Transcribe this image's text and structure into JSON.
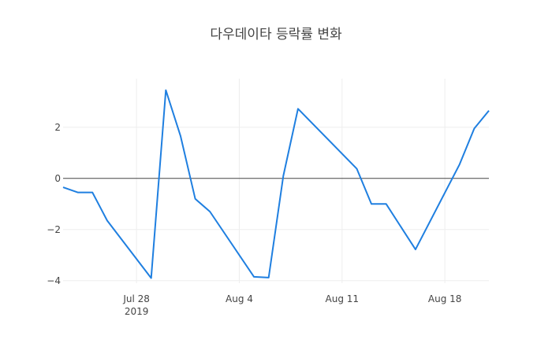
{
  "chart_data": {
    "type": "line",
    "title": "다우데이타 등락률 변화",
    "xlabel": "",
    "ylabel": "",
    "xlim": [
      "2019-07-23",
      "2019-08-21"
    ],
    "ylim": [
      -4.1,
      3.9
    ],
    "x_ticks": [
      {
        "value": "2019-07-28",
        "label": "Jul 28",
        "sublabel": "2019"
      },
      {
        "value": "2019-08-04",
        "label": "Aug 4",
        "sublabel": ""
      },
      {
        "value": "2019-08-11",
        "label": "Aug 11",
        "sublabel": ""
      },
      {
        "value": "2019-08-18",
        "label": "Aug 18",
        "sublabel": ""
      }
    ],
    "y_ticks": [
      {
        "value": -4,
        "label": "−4"
      },
      {
        "value": -2,
        "label": "−2"
      },
      {
        "value": 0,
        "label": "0"
      },
      {
        "value": 2,
        "label": "2"
      }
    ],
    "grid": true,
    "zero_line": true,
    "line_color": "#1f7fe0",
    "x": [
      "2019-07-23",
      "2019-07-24",
      "2019-07-25",
      "2019-07-26",
      "2019-07-29",
      "2019-07-30",
      "2019-07-31",
      "2019-08-01",
      "2019-08-02",
      "2019-08-05",
      "2019-08-06",
      "2019-08-07",
      "2019-08-08",
      "2019-08-12",
      "2019-08-13",
      "2019-08-14",
      "2019-08-16",
      "2019-08-19",
      "2019-08-20",
      "2019-08-21"
    ],
    "y": [
      -0.35,
      -0.55,
      -0.55,
      -1.65,
      -3.9,
      3.45,
      1.65,
      -0.8,
      -1.3,
      -3.85,
      -3.88,
      0.1,
      2.72,
      0.38,
      -1.0,
      -1.0,
      -2.78,
      0.55,
      1.95,
      2.65
    ]
  }
}
